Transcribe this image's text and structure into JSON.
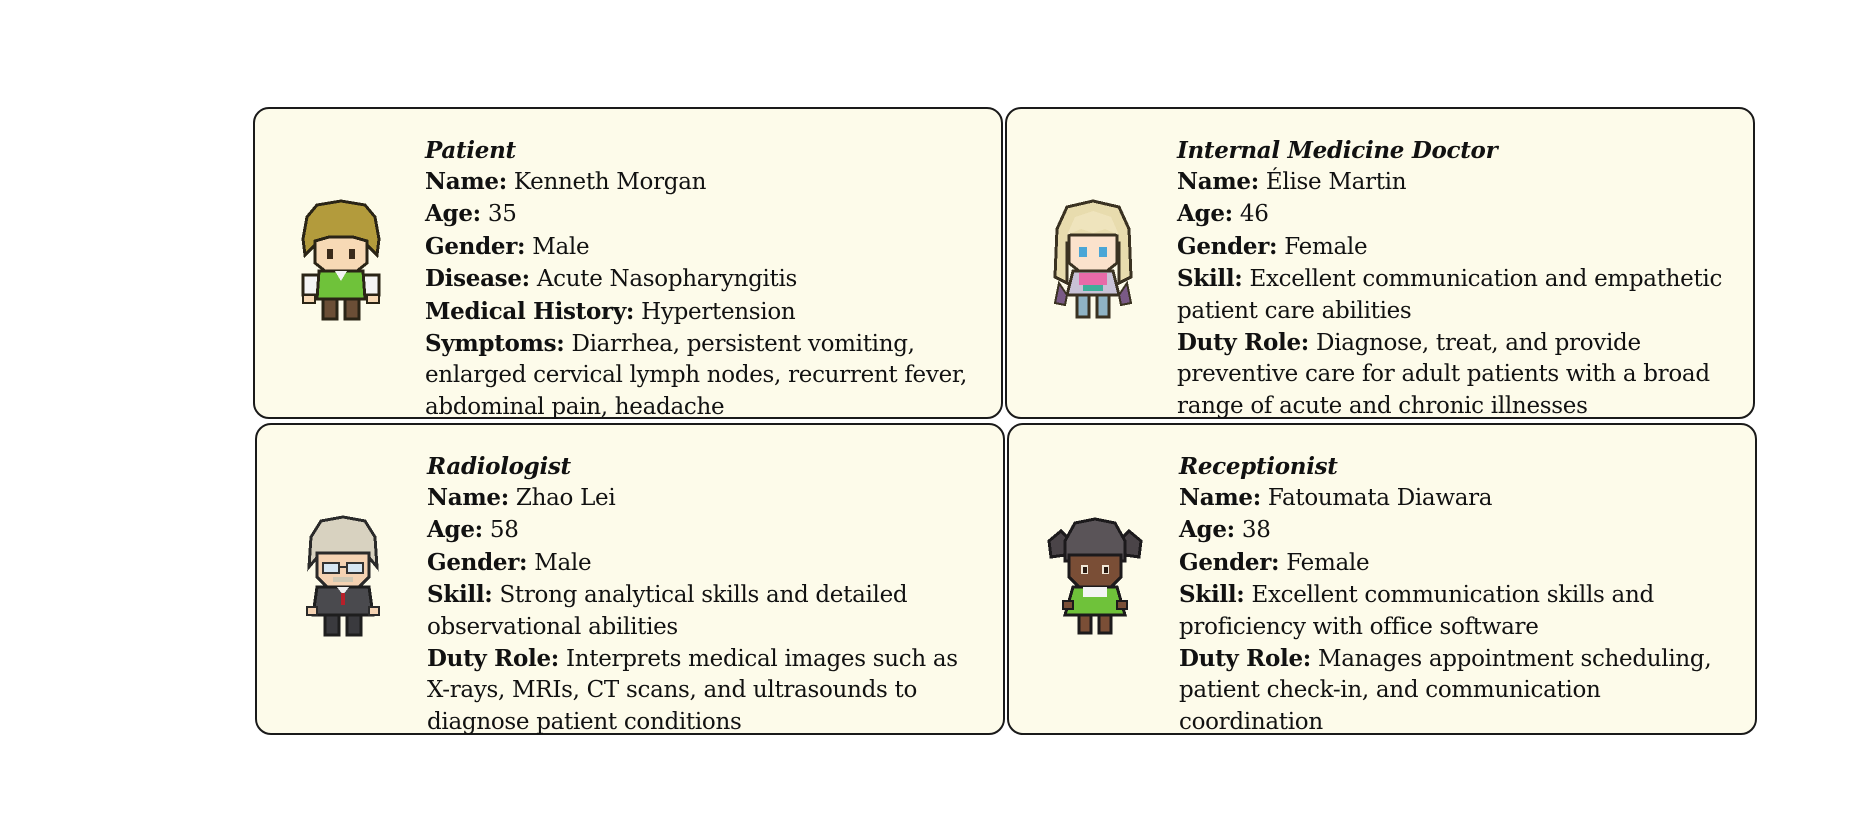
{
  "cards": [
    {
      "role": "Patient",
      "avatar_icon": "blonde-boy-green-vest-avatar",
      "fields": [
        {
          "label": "Name:",
          "value": "Kenneth Morgan"
        },
        {
          "label": "Age:",
          "value": "35"
        },
        {
          "label": "Gender:",
          "value": "Male"
        },
        {
          "label": "Disease:",
          "value": "Acute Nasopharyngitis"
        },
        {
          "label": "Medical History:",
          "value": "Hypertension"
        },
        {
          "label": "Symptoms:",
          "value": "Diarrhea, persistent vomiting, enlarged cervical lymph nodes, recurrent fever, abdominal pain, headache"
        }
      ]
    },
    {
      "role": "Internal Medicine Doctor",
      "avatar_icon": "blonde-woman-pink-dress-avatar",
      "fields": [
        {
          "label": "Name:",
          "value": "Élise Martin"
        },
        {
          "label": "Age:",
          "value": "46"
        },
        {
          "label": "Gender:",
          "value": "Female"
        },
        {
          "label": "Skill:",
          "value": "Excellent communication and empathetic patient care abilities"
        },
        {
          "label": "Duty Role:",
          "value": "Diagnose, treat, and provide preventive care for adult patients with a broad range of acute and chronic illnesses"
        }
      ]
    },
    {
      "role": "Radiologist",
      "avatar_icon": "grey-haired-man-glasses-suit-avatar",
      "fields": [
        {
          "label": "Name:",
          "value": "Zhao Lei"
        },
        {
          "label": "Age:",
          "value": "58"
        },
        {
          "label": "Gender:",
          "value": "Male"
        },
        {
          "label": "Skill:",
          "value": "Strong analytical skills and detailed observational abilities"
        },
        {
          "label": "Duty Role:",
          "value": "Interprets medical images such as X-rays, MRIs, CT scans, and ultrasounds to diagnose patient conditions"
        }
      ]
    },
    {
      "role": "Receptionist",
      "avatar_icon": "dark-skinned-girl-pigtails-green-dress-avatar",
      "fields": [
        {
          "label": "Name:",
          "value": "Fatoumata Diawara"
        },
        {
          "label": "Age:",
          "value": "38"
        },
        {
          "label": "Gender:",
          "value": "Female"
        },
        {
          "label": "Skill:",
          "value": "Excellent communication skills and proficiency with office software"
        },
        {
          "label": "Duty Role:",
          "value": "Manages appointment scheduling, patient check-in, and communication coordination"
        }
      ]
    }
  ],
  "colors": {
    "card_background": "#fdfbea",
    "card_border": "#1a1a1a",
    "text": "#111111"
  }
}
